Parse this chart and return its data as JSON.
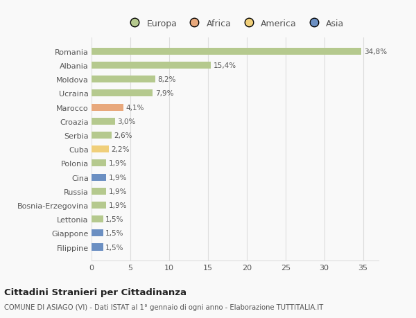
{
  "categories": [
    "Romania",
    "Albania",
    "Moldova",
    "Ucraina",
    "Marocco",
    "Croazia",
    "Serbia",
    "Cuba",
    "Polonia",
    "Cina",
    "Russia",
    "Bosnia-Erzegovina",
    "Lettonia",
    "Giappone",
    "Filippine"
  ],
  "values": [
    34.8,
    15.4,
    8.2,
    7.9,
    4.1,
    3.0,
    2.6,
    2.2,
    1.9,
    1.9,
    1.9,
    1.9,
    1.5,
    1.5,
    1.5
  ],
  "labels": [
    "34,8%",
    "15,4%",
    "8,2%",
    "7,9%",
    "4,1%",
    "3,0%",
    "2,6%",
    "2,2%",
    "1,9%",
    "1,9%",
    "1,9%",
    "1,9%",
    "1,5%",
    "1,5%",
    "1,5%"
  ],
  "continents": [
    "Europa",
    "Europa",
    "Europa",
    "Europa",
    "Africa",
    "Europa",
    "Europa",
    "America",
    "Europa",
    "Asia",
    "Europa",
    "Europa",
    "Europa",
    "Asia",
    "Asia"
  ],
  "continent_colors": {
    "Europa": "#b5c98e",
    "Africa": "#e8a87c",
    "America": "#f0cf7a",
    "Asia": "#6b8fc2"
  },
  "legend_items": [
    "Europa",
    "Africa",
    "America",
    "Asia"
  ],
  "legend_colors": [
    "#b5c98e",
    "#e8a87c",
    "#f0cf7a",
    "#6b8fc2"
  ],
  "xlim": [
    0,
    37
  ],
  "xticks": [
    0,
    5,
    10,
    15,
    20,
    25,
    30,
    35
  ],
  "title": "Cittadini Stranieri per Cittadinanza",
  "subtitle": "COMUNE DI ASIAGO (VI) - Dati ISTAT al 1° gennaio di ogni anno - Elaborazione TUTTITALIA.IT",
  "background_color": "#f9f9f9",
  "grid_color": "#dddddd",
  "text_color": "#555555",
  "bar_height": 0.5
}
